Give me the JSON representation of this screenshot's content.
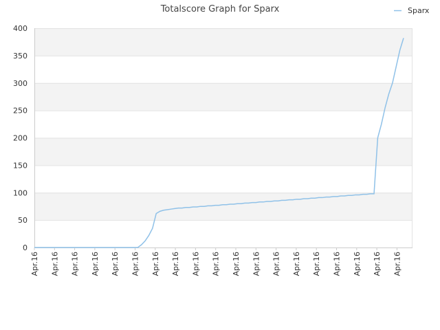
{
  "chart_data": {
    "type": "line",
    "title": "Totalscore Graph for Sparx",
    "xlabel": "",
    "ylabel": "",
    "ylim": [
      0,
      400
    ],
    "y_ticks": [
      0,
      50,
      100,
      150,
      200,
      250,
      300,
      350,
      400
    ],
    "x_tick_labels": [
      "Apr.16",
      "Apr.16",
      "Apr.16",
      "Apr.16",
      "Apr.16",
      "Apr.16",
      "Apr.16",
      "Apr.16",
      "Apr.16",
      "Apr.16",
      "Apr.16",
      "Apr.16",
      "Apr.16",
      "Apr.16",
      "Apr.16",
      "Apr.16",
      "Apr.16",
      "Apr.16",
      "Apr.16"
    ],
    "grid": true,
    "legend_position": "top-right",
    "colors": {
      "line": "#8fc1e8",
      "band": "#f3f3f3",
      "grid": "#e2e2e2",
      "axis": "#cccccc"
    },
    "series": [
      {
        "name": "Sparx",
        "x": [
          0,
          1,
          2,
          3,
          4,
          5,
          6,
          7,
          8,
          9,
          10,
          11,
          12,
          13,
          14,
          15,
          16,
          17,
          18,
          19,
          20,
          21,
          22,
          23,
          24,
          25,
          26,
          27,
          28,
          29,
          30,
          31,
          32,
          33,
          34,
          35,
          36,
          37,
          38,
          39,
          40,
          41,
          42,
          43,
          44,
          45,
          46,
          47,
          48,
          49,
          50,
          51,
          52,
          53,
          54,
          55,
          56,
          57,
          58,
          59,
          60,
          61,
          62,
          63,
          64,
          65,
          66,
          67,
          68,
          69,
          70,
          71,
          72,
          73,
          74,
          75,
          76,
          77,
          78,
          79,
          80,
          81,
          82,
          83,
          84,
          85,
          86,
          87,
          88,
          89,
          90,
          91,
          92,
          93,
          94,
          95,
          96,
          97,
          98,
          99,
          100
        ],
        "values": [
          0,
          0,
          0,
          0,
          0,
          0,
          0,
          0,
          0,
          0,
          0,
          0,
          0,
          0,
          0,
          0,
          0,
          0,
          0,
          0,
          0,
          0,
          0,
          0,
          0,
          0,
          0,
          0,
          0,
          5,
          12,
          22,
          35,
          62,
          66,
          68,
          69,
          70,
          71,
          72,
          72,
          73,
          73,
          74,
          74,
          75,
          75,
          76,
          76,
          77,
          77,
          78,
          78,
          79,
          79,
          80,
          80,
          81,
          81,
          82,
          82,
          83,
          83,
          84,
          84,
          85,
          85,
          86,
          86,
          87,
          87,
          88,
          88,
          89,
          89,
          90,
          90,
          91,
          91,
          92,
          92,
          93,
          93,
          94,
          94,
          95,
          95,
          96,
          96,
          97,
          97,
          98,
          98,
          200,
          225,
          255,
          280,
          300,
          330,
          360,
          382
        ]
      }
    ]
  }
}
